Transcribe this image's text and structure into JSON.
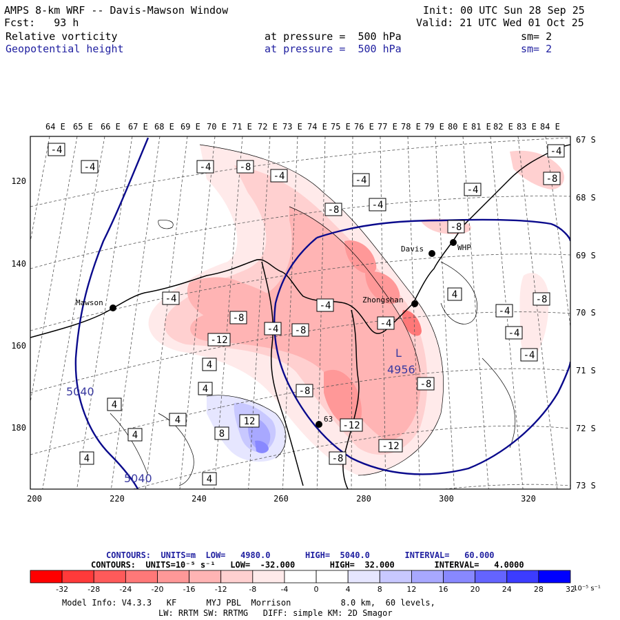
{
  "header": {
    "title": "AMPS 8-km WRF -- Davis-Mawson Window",
    "fcst": "Fcst:   93 h",
    "init": "Init: 00 UTC Sun 28 Sep 25",
    "valid": "Valid: 21 UTC Wed 01 Oct 25",
    "field1": {
      "name": "Relative vorticity",
      "pressure": "at pressure =  500 hPa",
      "sm": "sm= 2"
    },
    "field2": {
      "name": "Geopotential height",
      "pressure": "at pressure =  500 hPa",
      "sm": "sm= 2"
    }
  },
  "axes": {
    "top_lon": [
      "64 E",
      "65 E",
      "66 E",
      "67 E",
      "68 E",
      "69 E",
      "70 E",
      "71 E",
      "72 E",
      "73 E",
      "74 E",
      "75 E",
      "76 E",
      "77 E",
      "78 E",
      "79 E",
      "80 E",
      "81 E",
      "82 E",
      "83 E",
      "84 E"
    ],
    "right_lat": [
      "67 S",
      "68 S",
      "69 S",
      "70 S",
      "71 S",
      "72 S",
      "73 S"
    ],
    "left_y": [
      "120",
      "140",
      "160",
      "180"
    ],
    "bottom_x": [
      "200",
      "220",
      "240",
      "260",
      "280",
      "300",
      "320"
    ]
  },
  "stations": [
    {
      "name": "Mawson"
    },
    {
      "name": "Davis"
    },
    {
      "name": "WHP"
    },
    {
      "name": "Zhongshan"
    },
    {
      "name": "63"
    }
  ],
  "contour_labels": {
    "height": [
      "5040",
      "5040",
      "4956"
    ],
    "low_marker": "L",
    "vorticity": [
      "-4",
      "-4",
      "-4",
      "-8",
      "-4",
      "-4",
      "-4",
      "-4",
      "-8",
      "-8",
      "-4",
      "-8",
      "-4",
      "-4",
      "-8",
      "-12",
      "-8",
      "-4",
      "-4",
      "-4",
      "-8",
      "-12",
      "-4",
      "-8",
      "-4",
      "-8",
      "4",
      "4",
      "4",
      "4",
      "12",
      "4",
      "4",
      "8",
      "4",
      "4",
      "-12",
      "-8"
    ]
  },
  "footer": {
    "contours1": "CONTOURS:  UNITS=m  LOW=   4980.0       HIGH=  5040.0       INTERVAL=   60.000",
    "contours2": "CONTOURS:  UNITS=10⁻⁵ s⁻¹   LOW=  -32.000       HIGH=  32.000        INTERVAL=   4.0000",
    "model1": "Model Info: V4.3.3   KF      MYJ PBL  Morrison          8.0 km,  60 levels,",
    "model2": "LW: RRTM SW: RRTMG   DIFF: simple KM: 2D Smagor"
  },
  "colorbar": {
    "ticks": [
      "-32",
      "-28",
      "-24",
      "-20",
      "-16",
      "-12",
      "-8",
      "-4",
      "0",
      "4",
      "8",
      "12",
      "16",
      "20",
      "24",
      "28",
      "32"
    ],
    "unit": "10⁻⁵ s⁻¹",
    "colors": [
      "#ff0000",
      "#ff3a3a",
      "#ff5a5a",
      "#ff7878",
      "#ff9898",
      "#ffb4b4",
      "#ffd0d0",
      "#ffeaea",
      "#ffffff",
      "#ffffff",
      "#e6e6ff",
      "#c8c8ff",
      "#a8a8ff",
      "#8888ff",
      "#6464ff",
      "#3c3cff",
      "#0000ff"
    ]
  }
}
